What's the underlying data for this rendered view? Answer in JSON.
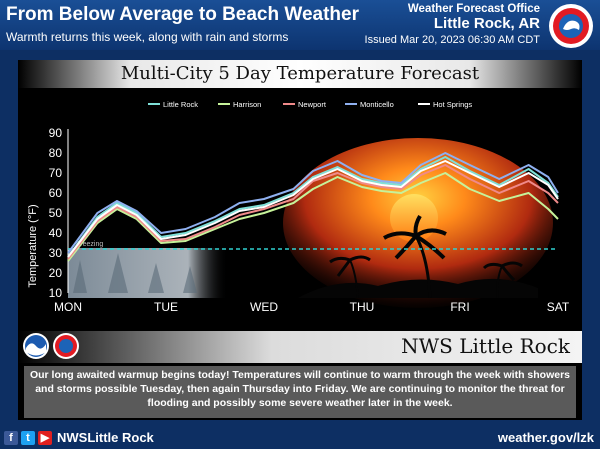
{
  "header": {
    "title": "From Below Average to Beach Weather",
    "subtitle": "Warmth returns this week, along with rain and storms",
    "office_label": "Weather Forecast Office",
    "city": "Little Rock, AR",
    "issued": "Issued Mar 20, 2023 06:30 AM CDT"
  },
  "office_banner": "NWS Little Rock",
  "message": "Our long awaited warmup begins today! Temperatures will continue to warm through the week with showers and storms possible Tuesday, then again Thursday into Friday. We are continuing to monitor the threat for flooding and possibly some severe weather later in the week.",
  "footer": {
    "handle": "NWSLittle Rock",
    "site": "weather.gov/lzk"
  },
  "icons": [
    "noaa-logo",
    "nws-logo",
    "facebook-icon",
    "twitter-icon",
    "youtube-icon"
  ],
  "colors": {
    "background": "#0d2f63",
    "little_rock": "#7fe0d8",
    "harrison": "#c6f29a",
    "newport": "#f08a8a",
    "monticello": "#8fb0f0",
    "hot_springs": "#ffffff",
    "freezing_line": "#2fd0d0"
  },
  "chart_data": {
    "type": "line",
    "title": "Multi-City 5 Day Temperature Forecast",
    "ylabel": "Temperature (°F)",
    "xlabel": "",
    "ylim": [
      10,
      90
    ],
    "yticks": [
      10,
      20,
      30,
      40,
      50,
      60,
      70,
      80,
      90
    ],
    "categories": [
      "MON",
      "TUE",
      "WED",
      "THU",
      "FRI",
      "SAT"
    ],
    "x": [
      0,
      0.3,
      0.5,
      0.7,
      0.95,
      1.2,
      1.5,
      1.75,
      2.0,
      2.3,
      2.5,
      2.75,
      3.0,
      3.2,
      3.4,
      3.6,
      3.85,
      4.1,
      4.4,
      4.7,
      4.9,
      5.0
    ],
    "freezing": {
      "value": 32,
      "label": "Freezing"
    },
    "legend_position": "top",
    "grid": false,
    "series": [
      {
        "name": "Little Rock",
        "color": "#7fe0d8",
        "values": [
          28,
          48,
          55,
          50,
          38,
          40,
          46,
          52,
          54,
          60,
          68,
          73,
          67,
          65,
          64,
          72,
          78,
          71,
          64,
          72,
          65,
          58
        ]
      },
      {
        "name": "Harrison",
        "color": "#c6f29a",
        "values": [
          26,
          45,
          52,
          47,
          35,
          36,
          42,
          47,
          50,
          55,
          62,
          68,
          63,
          61,
          60,
          65,
          70,
          62,
          56,
          60,
          52,
          47
        ]
      },
      {
        "name": "Newport",
        "color": "#f08a8a",
        "values": [
          27,
          46,
          53,
          48,
          36,
          37,
          43,
          49,
          52,
          57,
          66,
          70,
          65,
          63,
          62,
          69,
          74,
          67,
          60,
          66,
          60,
          55
        ]
      },
      {
        "name": "Monticello",
        "color": "#8fb0f0",
        "values": [
          30,
          50,
          56,
          51,
          40,
          42,
          48,
          55,
          57,
          62,
          71,
          76,
          69,
          66,
          65,
          74,
          80,
          74,
          67,
          74,
          68,
          60
        ]
      },
      {
        "name": "Hot Springs",
        "color": "#ffffff",
        "values": [
          28,
          47,
          54,
          49,
          37,
          39,
          45,
          51,
          53,
          59,
          67,
          72,
          66,
          64,
          63,
          71,
          76,
          70,
          63,
          70,
          64,
          57
        ]
      }
    ]
  }
}
